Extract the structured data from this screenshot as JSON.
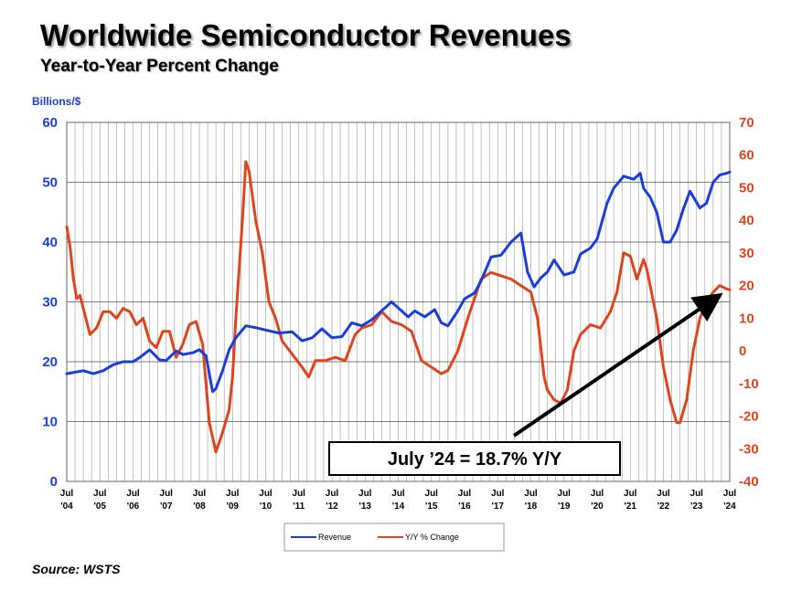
{
  "title": "Worldwide Semiconductor Revenues",
  "subtitle": "Year-to-Year Percent Change",
  "source": "Source: WSTS",
  "colors": {
    "revenue": "#1a3fd8",
    "yoy": "#e0441c",
    "grid": "#999999"
  },
  "chart_data": {
    "type": "line",
    "title": "Worldwide Semiconductor Revenues",
    "subtitle": "Year-to-Year Percent Change",
    "ylabel": "Billions/$",
    "ylim": [
      0,
      60
    ],
    "yticks": [
      0,
      10,
      20,
      30,
      40,
      50,
      60
    ],
    "y2lim": [
      -40,
      70
    ],
    "y2ticks": [
      -40,
      -30,
      -20,
      -10,
      0,
      10,
      20,
      30,
      40,
      50,
      60,
      70
    ],
    "xlim": [
      2004.5,
      2024.5
    ],
    "xtick_labels": [
      [
        "Jul",
        "'04"
      ],
      [
        "Jul",
        "'05"
      ],
      [
        "Jul",
        "'06"
      ],
      [
        "Jul",
        "'07"
      ],
      [
        "Jul",
        "'08"
      ],
      [
        "Jul",
        "'09"
      ],
      [
        "Jul",
        "'10"
      ],
      [
        "Jul",
        "'11"
      ],
      [
        "Jul",
        "'12"
      ],
      [
        "Jul",
        "'13"
      ],
      [
        "Jul",
        "'14"
      ],
      [
        "Jul",
        "'15"
      ],
      [
        "Jul",
        "'16"
      ],
      [
        "Jul",
        "'17"
      ],
      [
        "Jul",
        "'18"
      ],
      [
        "Jul",
        "'19"
      ],
      [
        "Jul",
        "'20"
      ],
      [
        "Jul",
        "'21"
      ],
      [
        "Jul",
        "'22"
      ],
      [
        "Jul",
        "'23"
      ],
      [
        "Jul",
        "'24"
      ]
    ],
    "grid": "vertical",
    "legend_position": "bottom-center",
    "series": [
      {
        "name": "Revenue",
        "axis": "left",
        "x": [
          2004.5,
          2004.8,
          2005.0,
          2005.3,
          2005.6,
          2005.9,
          2006.2,
          2006.5,
          2006.7,
          2007.0,
          2007.3,
          2007.5,
          2007.8,
          2008.0,
          2008.3,
          2008.5,
          2008.7,
          2008.9,
          2009.0,
          2009.2,
          2009.4,
          2009.6,
          2009.9,
          2010.2,
          2010.5,
          2010.9,
          2011.3,
          2011.6,
          2011.9,
          2012.2,
          2012.5,
          2012.8,
          2013.1,
          2013.4,
          2013.7,
          2014.0,
          2014.3,
          2014.6,
          2014.8,
          2015.0,
          2015.3,
          2015.6,
          2015.8,
          2016.0,
          2016.3,
          2016.5,
          2016.8,
          2017.0,
          2017.3,
          2017.6,
          2017.9,
          2018.2,
          2018.4,
          2018.6,
          2018.8,
          2019.0,
          2019.2,
          2019.5,
          2019.8,
          2020.0,
          2020.3,
          2020.5,
          2020.8,
          2021.0,
          2021.3,
          2021.6,
          2021.8,
          2021.9,
          2022.1,
          2022.3,
          2022.5,
          2022.7,
          2022.9,
          2023.1,
          2023.3,
          2023.6,
          2023.8,
          2024.0,
          2024.2,
          2024.4,
          2024.5
        ],
        "values": [
          18.0,
          18.3,
          18.5,
          18.0,
          18.5,
          19.5,
          20.0,
          20.0,
          20.7,
          22.0,
          20.3,
          20.2,
          21.8,
          21.2,
          21.5,
          22.0,
          21.0,
          15.0,
          15.5,
          18.5,
          22.0,
          24.0,
          26.0,
          25.7,
          25.3,
          24.8,
          25.0,
          23.5,
          24.0,
          25.5,
          24.0,
          24.2,
          26.5,
          26.0,
          27.0,
          28.5,
          30.0,
          28.5,
          27.5,
          28.5,
          27.5,
          28.7,
          26.5,
          26.0,
          28.5,
          30.5,
          31.5,
          33.5,
          37.5,
          37.8,
          40.0,
          41.5,
          35.0,
          32.5,
          34.0,
          35.0,
          37.0,
          34.5,
          35.0,
          38.0,
          39.0,
          40.5,
          46.5,
          49.0,
          51.0,
          50.5,
          51.5,
          49.0,
          47.5,
          45.0,
          40.0,
          40.0,
          42.0,
          45.5,
          48.5,
          45.7,
          46.5,
          50.0,
          51.2,
          51.5,
          51.7
        ]
      },
      {
        "name": "Y/Y % Change",
        "axis": "right",
        "x": [
          2004.5,
          2004.6,
          2004.7,
          2004.8,
          2004.9,
          2005.0,
          2005.2,
          2005.4,
          2005.6,
          2005.8,
          2006.0,
          2006.2,
          2006.4,
          2006.6,
          2006.8,
          2007.0,
          2007.2,
          2007.4,
          2007.6,
          2007.8,
          2008.0,
          2008.2,
          2008.4,
          2008.6,
          2008.8,
          2009.0,
          2009.2,
          2009.4,
          2009.5,
          2009.6,
          2009.8,
          2009.9,
          2010.0,
          2010.2,
          2010.4,
          2010.6,
          2010.8,
          2011.0,
          2011.3,
          2011.6,
          2011.8,
          2012.0,
          2012.3,
          2012.6,
          2012.9,
          2013.2,
          2013.4,
          2013.7,
          2014.0,
          2014.3,
          2014.6,
          2014.9,
          2015.2,
          2015.5,
          2015.8,
          2016.0,
          2016.3,
          2016.6,
          2016.8,
          2017.0,
          2017.3,
          2017.6,
          2017.9,
          2018.2,
          2018.5,
          2018.7,
          2018.9,
          2019.0,
          2019.2,
          2019.4,
          2019.6,
          2019.8,
          2020.0,
          2020.3,
          2020.6,
          2020.9,
          2021.1,
          2021.3,
          2021.5,
          2021.7,
          2021.9,
          2022.0,
          2022.3,
          2022.5,
          2022.7,
          2022.9,
          2023.0,
          2023.2,
          2023.4,
          2023.6,
          2023.8,
          2024.0,
          2024.2,
          2024.4,
          2024.5
        ],
        "values": [
          38,
          32,
          22,
          16,
          17,
          13,
          5,
          7,
          12,
          12,
          10,
          13,
          12,
          8,
          10,
          3,
          1,
          6,
          6,
          -2,
          2,
          8,
          9,
          2,
          -22,
          -31,
          -25,
          -18,
          -8,
          10,
          40,
          58,
          55,
          40,
          30,
          15,
          10,
          3,
          -1,
          -5,
          -8,
          -3,
          -3,
          -2,
          -3,
          5,
          7,
          8,
          12,
          9,
          8,
          6,
          -3,
          -5,
          -7,
          -6,
          0,
          10,
          16,
          22,
          24,
          23,
          22,
          20,
          18,
          10,
          -8,
          -12,
          -15,
          -16,
          -12,
          0,
          5,
          8,
          7,
          12,
          18,
          30,
          29,
          22,
          28,
          25,
          10,
          -5,
          -15,
          -22,
          -22,
          -15,
          0,
          10,
          15,
          18,
          20,
          19,
          18.7
        ]
      }
    ],
    "annotation": {
      "text": "July ’24 = 18.7% Y/Y",
      "arrow_to": [
        2024.5,
        18.7
      ]
    }
  }
}
